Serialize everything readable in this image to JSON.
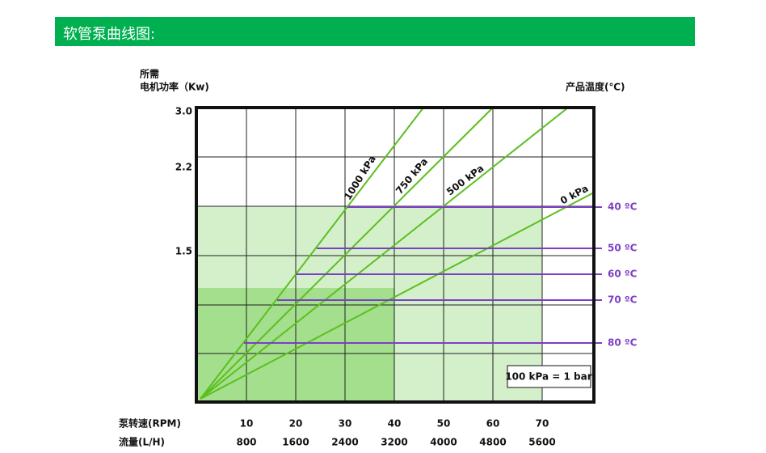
{
  "header": {
    "title": "软管泵曲线图:"
  },
  "chart": {
    "y_label_lines": [
      "所需",
      "电机功率（Kw)"
    ],
    "right_label": "产品温度(℃)",
    "yticks": [
      "3.0",
      "2.2",
      "1.5"
    ],
    "x_rows": [
      {
        "label": "泵转速(RPM)",
        "values": [
          10,
          20,
          30,
          40,
          50,
          60,
          70
        ]
      },
      {
        "label": "流量(L/H)",
        "values": [
          800,
          1600,
          2400,
          3200,
          4000,
          4800,
          5600
        ]
      }
    ],
    "pressure_lines": [
      "1000 kPa",
      "750 kPa",
      "500 kPa",
      "0 kPa"
    ],
    "temperature_lines": [
      "40 ºC",
      "50 ºC",
      "60 ºC",
      "70 ºC",
      "80 ºC"
    ],
    "note": "100 kPa = 1 bar"
  }
}
